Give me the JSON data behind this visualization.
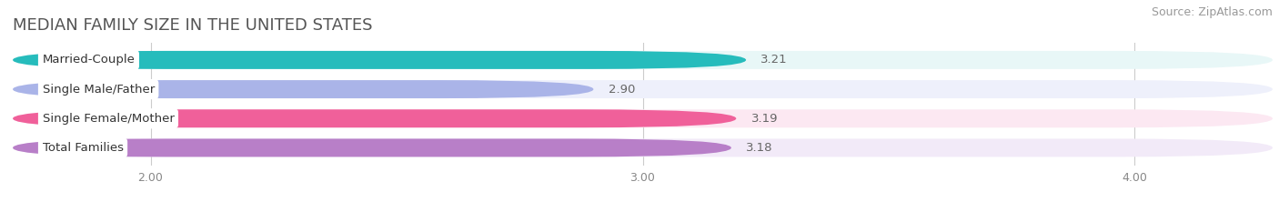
{
  "title": "MEDIAN FAMILY SIZE IN THE UNITED STATES",
  "source": "Source: ZipAtlas.com",
  "categories": [
    "Married-Couple",
    "Single Male/Father",
    "Single Female/Mother",
    "Total Families"
  ],
  "values": [
    3.21,
    2.9,
    3.19,
    3.18
  ],
  "bar_colors": [
    "#26bcbc",
    "#aab4e8",
    "#f0609a",
    "#b87fc8"
  ],
  "bar_bg_colors": [
    "#e8f7f7",
    "#eef0fb",
    "#fce8f2",
    "#f2eaf8"
  ],
  "xlim_left": 1.72,
  "xlim_right": 4.28,
  "xticks": [
    2.0,
    3.0,
    4.0
  ],
  "xtick_labels": [
    "2.00",
    "3.00",
    "4.00"
  ],
  "title_fontsize": 13,
  "source_fontsize": 9,
  "label_fontsize": 9.5,
  "value_fontsize": 9.5,
  "background_color": "#ffffff",
  "bar_height": 0.62
}
